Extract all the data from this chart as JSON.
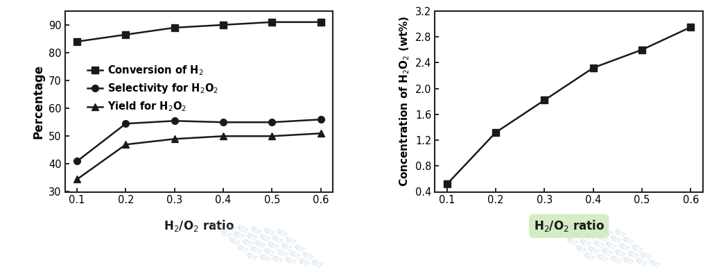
{
  "x": [
    0.1,
    0.2,
    0.3,
    0.4,
    0.5,
    0.6
  ],
  "conversion_h2": [
    84,
    86.5,
    89,
    90,
    91,
    91
  ],
  "selectivity_h2o2": [
    41,
    54.5,
    55.5,
    55,
    55,
    56
  ],
  "yield_h2o2": [
    34.5,
    47,
    49,
    50,
    50,
    51
  ],
  "concentration_h2o2": [
    0.52,
    1.32,
    1.82,
    2.32,
    2.6,
    2.95
  ],
  "ylabel_left": "Percentage",
  "ylabel_right": "Concentration of H$_2$O$_2$ (wt%)",
  "xlabel": "H$_2$/O$_2$ ratio",
  "ylim_left": [
    30,
    95
  ],
  "ylim_right": [
    0.4,
    3.2
  ],
  "yticks_left": [
    30,
    40,
    50,
    60,
    70,
    80,
    90
  ],
  "yticks_right": [
    0.4,
    0.8,
    1.2,
    1.6,
    2.0,
    2.4,
    2.8,
    3.2
  ],
  "xticks": [
    0.1,
    0.2,
    0.3,
    0.4,
    0.5,
    0.6
  ],
  "legend_labels": [
    "Conversion of H$_2$",
    "Selectivity for H$_2$O$_2$",
    "Yield for H$_2$O$_2$"
  ],
  "line_color": "#1a1a1a",
  "marker_square": "s",
  "marker_circle": "o",
  "marker_triangle": "^",
  "marker_size": 7,
  "linewidth": 1.8,
  "background_color": "#ffffff",
  "keit_color": "#a0c0d8",
  "green_oval_color": "#c8e8b0"
}
